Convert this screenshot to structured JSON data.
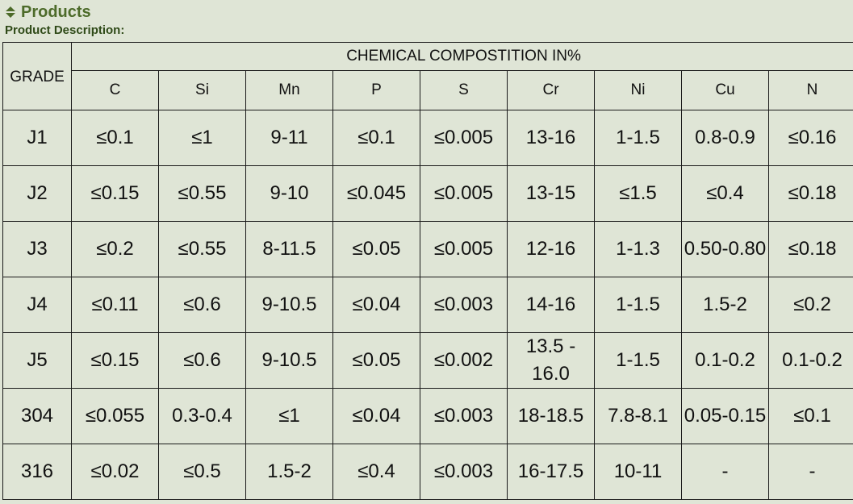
{
  "header": {
    "title": "Products",
    "subtitle": "Product Description:"
  },
  "table": {
    "first_header": "GRADE",
    "group_header": "CHEMICAL COMPOSTITION IN%",
    "columns": [
      "C",
      "Si",
      "Mn",
      "P",
      "S",
      "Cr",
      "Ni",
      "Cu",
      "N"
    ],
    "rows": [
      [
        "J1",
        "≤0.1",
        "≤1",
        "9-11",
        "≤0.1",
        "≤0.005",
        "13-16",
        "1-1.5",
        "0.8-0.9",
        "≤0.16"
      ],
      [
        "J2",
        "≤0.15",
        "≤0.55",
        "9-10",
        "≤0.045",
        "≤0.005",
        "13-15",
        "≤1.5",
        "≤0.4",
        "≤0.18"
      ],
      [
        "J3",
        "≤0.2",
        "≤0.55",
        "8-11.5",
        "≤0.05",
        "≤0.005",
        "12-16",
        "1-1.3",
        "0.50-0.80",
        "≤0.18"
      ],
      [
        "J4",
        "≤0.11",
        "≤0.6",
        "9-10.5",
        "≤0.04",
        "≤0.003",
        "14-16",
        "1-1.5",
        "1.5-2",
        "≤0.2"
      ],
      [
        "J5",
        "≤0.15",
        "≤0.6",
        "9-10.5",
        "≤0.05",
        "≤0.002",
        "13.5 - 16.0",
        "1-1.5",
        "0.1-0.2",
        "0.1-0.2"
      ],
      [
        "304",
        "≤0.055",
        "0.3-0.4",
        "≤1",
        "≤0.04",
        "≤0.003",
        "18-18.5",
        "7.8-8.1",
        "0.05-0.15",
        "≤0.1"
      ],
      [
        "316",
        "≤0.02",
        "≤0.5",
        "1.5-2",
        "≤0.4",
        "≤0.003",
        "16-17.5",
        "10-11",
        "-",
        "-"
      ]
    ]
  }
}
